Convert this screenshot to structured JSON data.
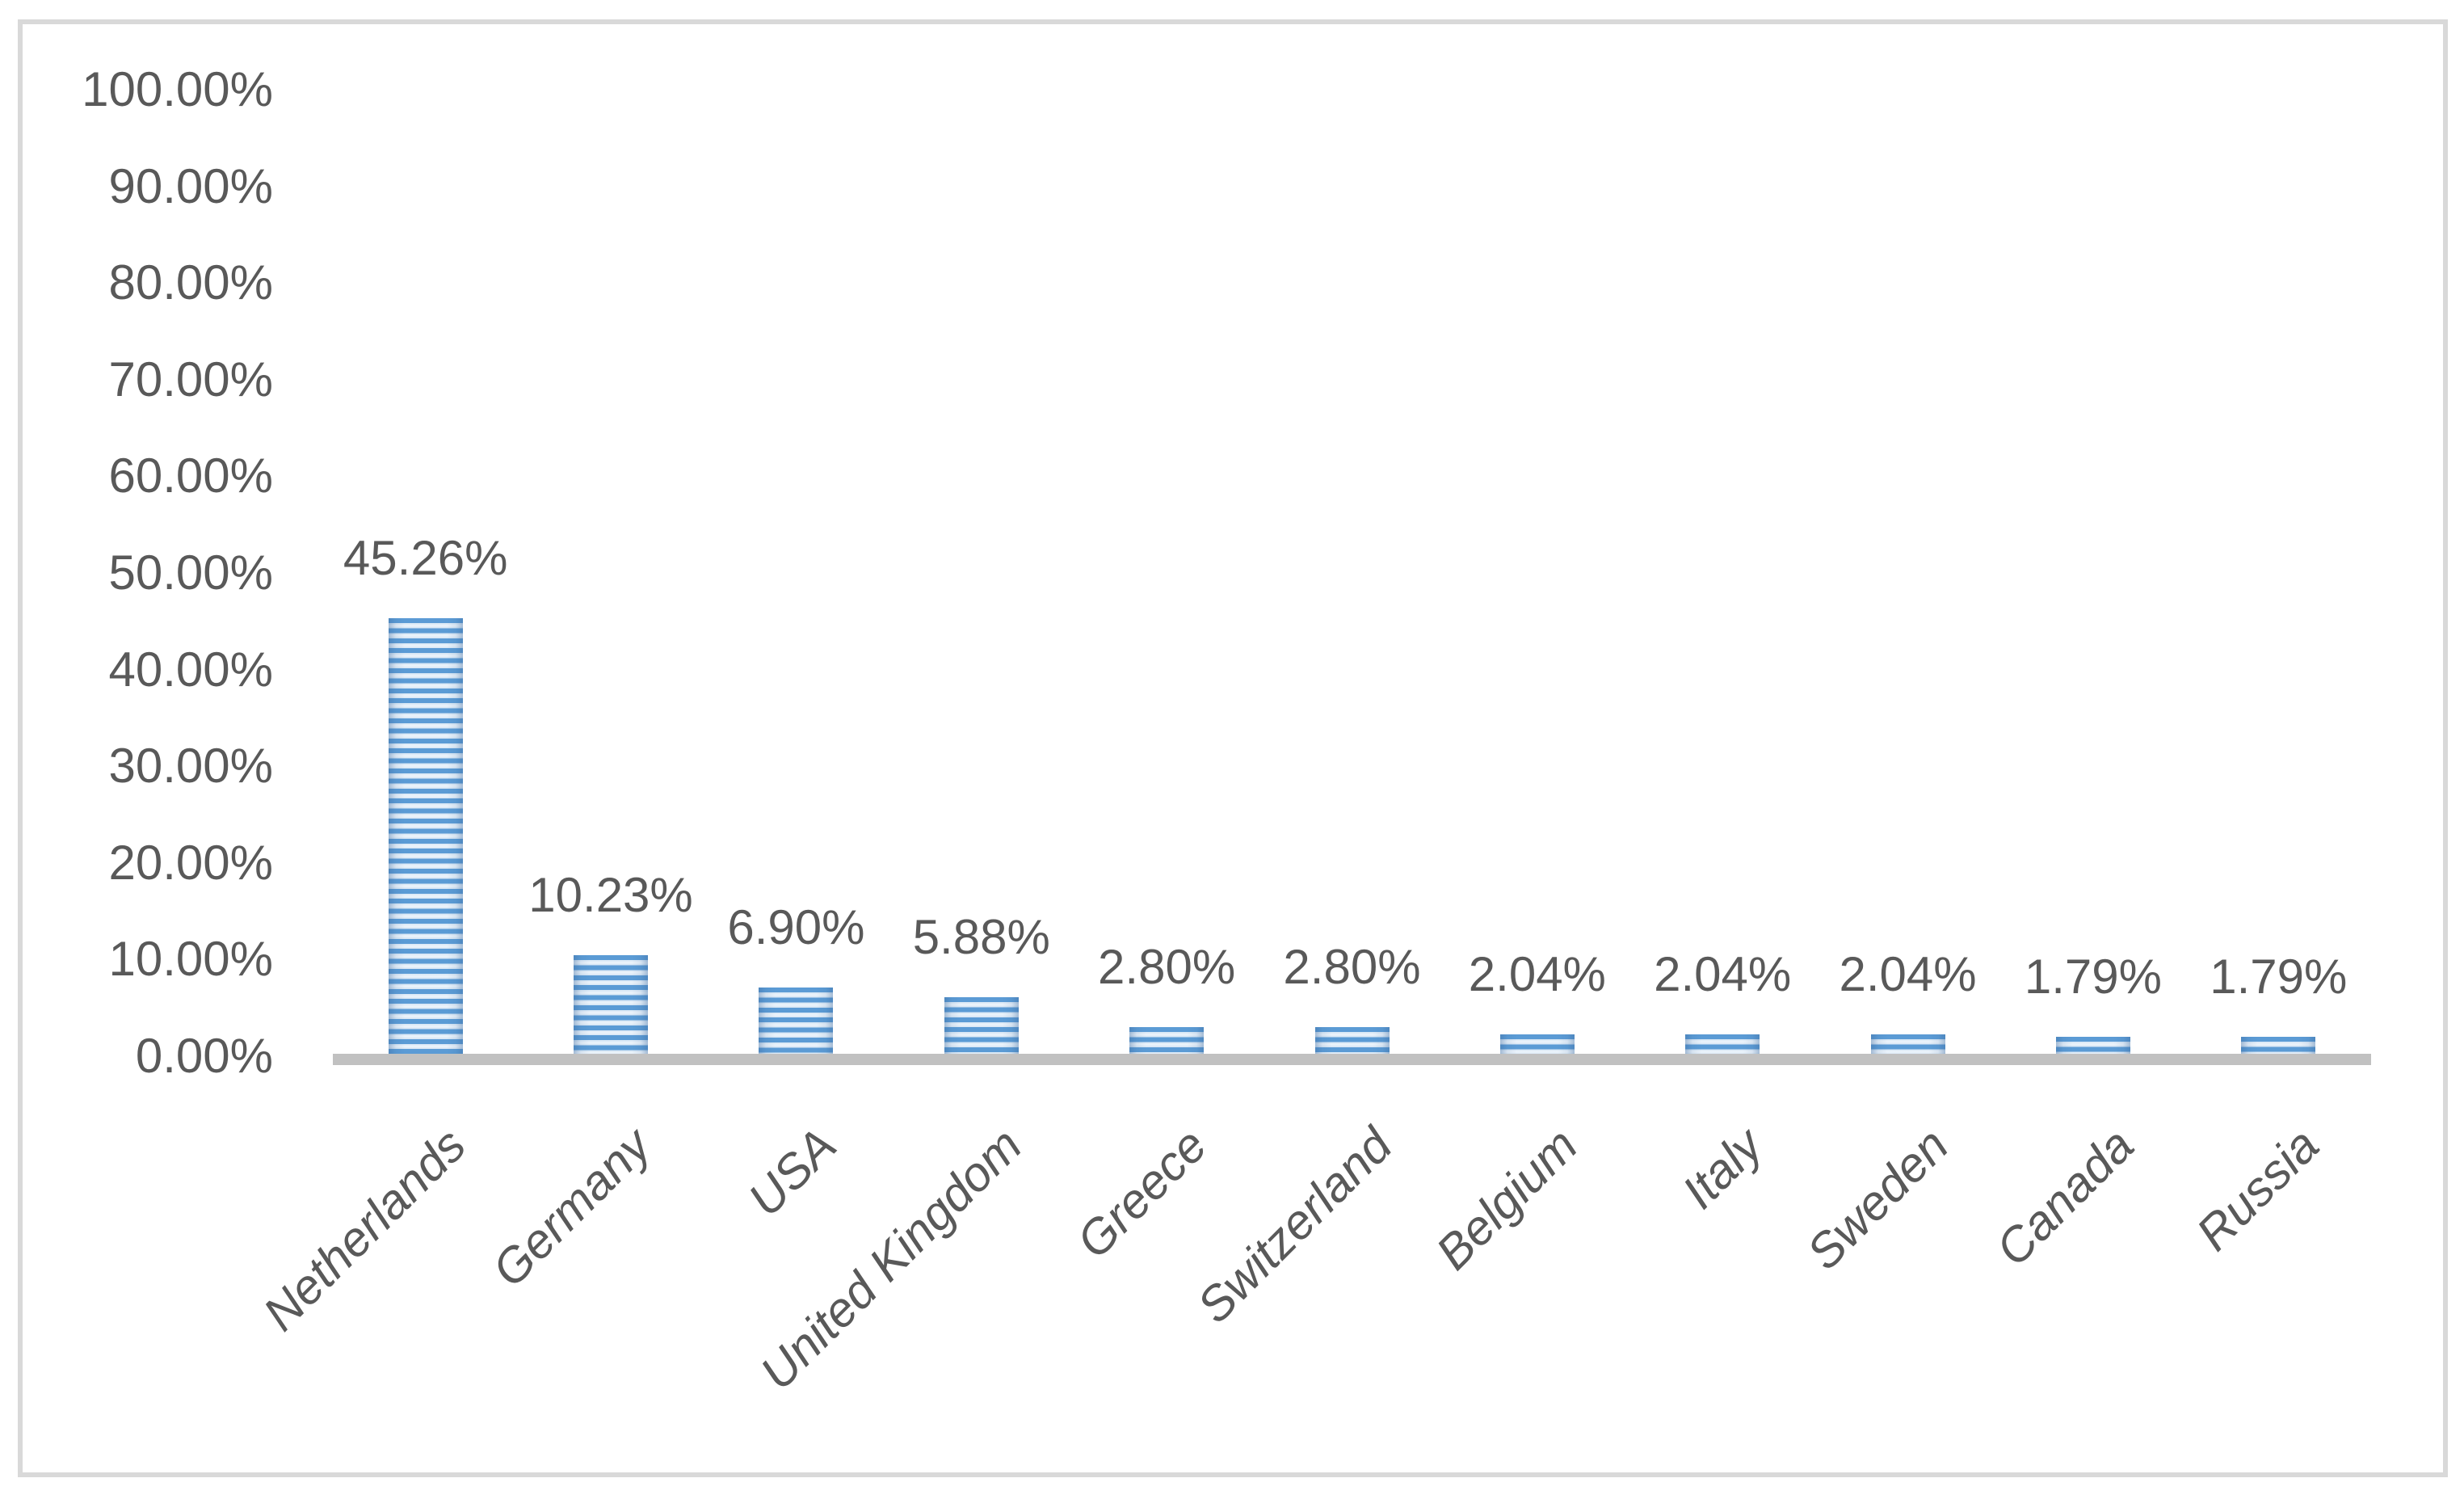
{
  "chart_data": {
    "type": "bar",
    "title": "",
    "xlabel": "",
    "ylabel": "",
    "categories": [
      "Netherlands",
      "Germany",
      "USA",
      "United Kingdom",
      "Greece",
      "Switzerland",
      "Belgium",
      "Italy",
      "Sweden",
      "Canada",
      "Russia"
    ],
    "values": [
      45.26,
      10.23,
      6.9,
      5.88,
      2.8,
      2.8,
      2.04,
      2.04,
      2.04,
      1.79,
      1.79
    ],
    "value_labels": [
      "45.26%",
      "10.23%",
      "6.90%",
      "5.88%",
      "2.80%",
      "2.80%",
      "2.04%",
      "2.04%",
      "2.04%",
      "1.79%",
      "1.79%"
    ],
    "y_ticks": [
      "0.00%",
      "10.00%",
      "20.00%",
      "30.00%",
      "40.00%",
      "50.00%",
      "60.00%",
      "70.00%",
      "80.00%",
      "90.00%",
      "100.00%"
    ],
    "ylim": [
      0,
      100
    ],
    "grid": false,
    "legend": false,
    "colors": {
      "bar_stripe_dark": "#5B9BD5",
      "bar_stripe_light_edge": "#D5E5F4",
      "bar_stripe_light_mid": "#EDF4FB",
      "axis_line": "#C1C1C1",
      "text": "#595959",
      "frame_border": "#D9D9D9"
    }
  }
}
